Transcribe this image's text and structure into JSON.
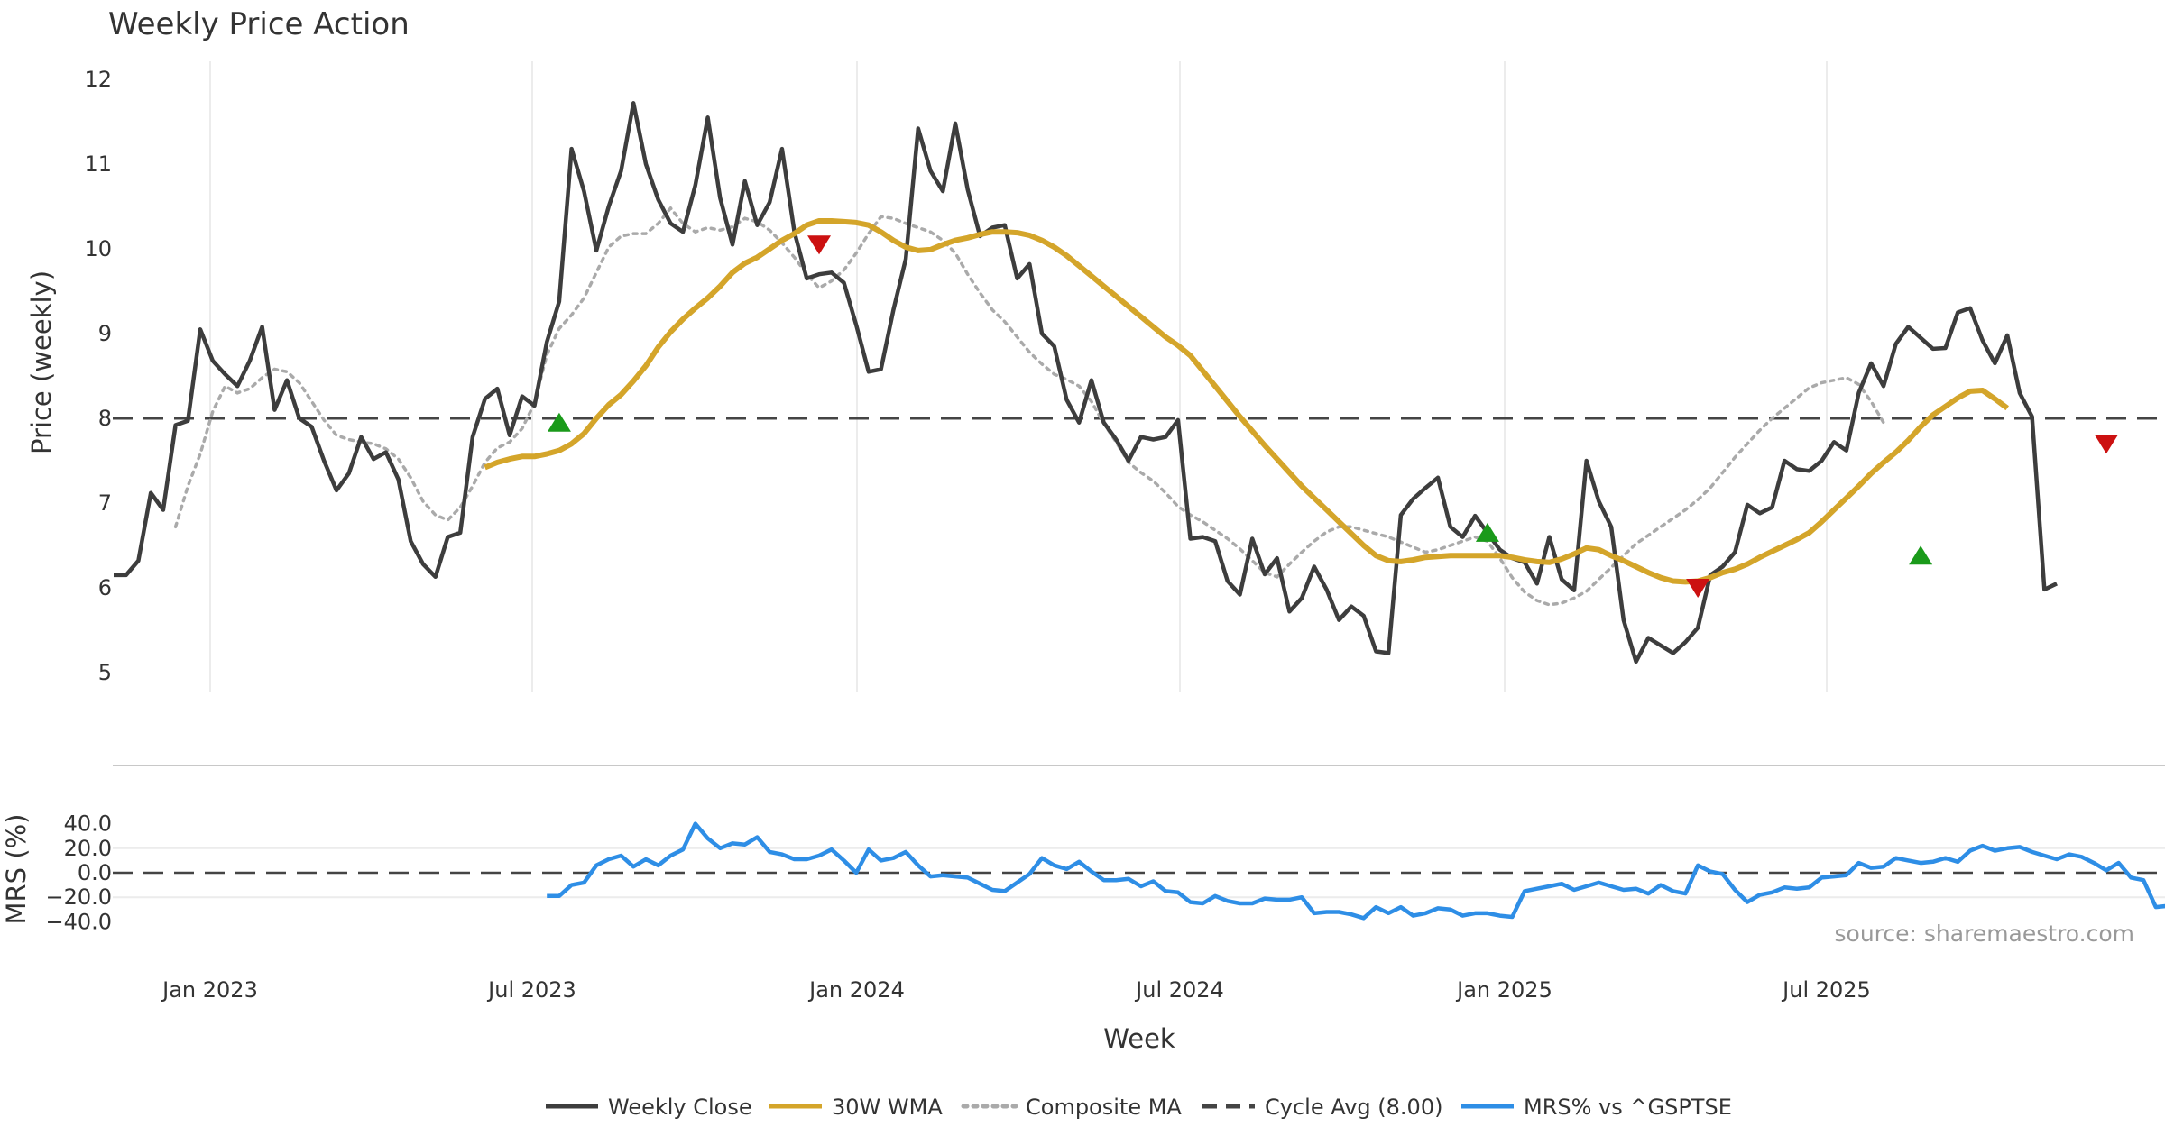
{
  "chart_data": {
    "type": "line",
    "title": "Weekly Price Action",
    "xlabel": "Week",
    "source": "source: sharemaestro.com",
    "x_ticks": [
      "Jan 2023",
      "Jul 2023",
      "Jan 2024",
      "Jul 2024",
      "Jan 2025",
      "Jul 2025"
    ],
    "price_panel": {
      "ylabel": "Price (weekly)",
      "ylim": [
        4.8,
        12.3
      ],
      "y_ticks": [
        "5",
        "6",
        "7",
        "8",
        "9",
        "10",
        "11",
        "12"
      ],
      "cycle_avg": 8.0
    },
    "mrs_panel": {
      "ylabel": "MRS (%)",
      "ylim": [
        -40,
        40
      ],
      "y_ticks": [
        "−40.0",
        "−20.0",
        "0.0",
        "20.0",
        "40.0"
      ],
      "zero_line": 0
    },
    "legend": [
      {
        "label": "Weekly Close",
        "color": "#3d3d3d",
        "style": "solid"
      },
      {
        "label": "30W WMA",
        "color": "#d4a52a",
        "style": "solid"
      },
      {
        "label": "Composite MA",
        "color": "#aaaaaa",
        "style": "dotted"
      },
      {
        "label": "Cycle Avg (8.00)",
        "color": "#444444",
        "style": "dashed"
      },
      {
        "label": "MRS% vs ^GSPTSE",
        "color": "#2e8ee6",
        "style": "solid"
      }
    ],
    "series": [
      {
        "name": "Weekly Close",
        "color": "#3d3d3d",
        "start_week": 0,
        "values": [
          6.15,
          6.15,
          6.32,
          7.12,
          6.92,
          7.92,
          7.97,
          9.05,
          8.68,
          8.52,
          8.38,
          8.68,
          9.08,
          8.1,
          8.45,
          8.0,
          7.9,
          7.5,
          7.15,
          7.35,
          7.78,
          7.52,
          7.6,
          7.28,
          6.55,
          6.28,
          6.13,
          6.6,
          6.65,
          7.78,
          8.23,
          8.35,
          7.8,
          8.26,
          8.15,
          8.9,
          9.38,
          11.18,
          10.68,
          9.98,
          10.5,
          10.92,
          11.72,
          11.0,
          10.58,
          10.3,
          10.2,
          10.75,
          11.55,
          10.6,
          10.05,
          10.8,
          10.28,
          10.55,
          11.18,
          10.2,
          9.65,
          9.7,
          9.72,
          9.6,
          9.1,
          8.55,
          8.58,
          9.28,
          9.88,
          11.42,
          10.92,
          10.68,
          11.48,
          10.7,
          10.15,
          10.25,
          10.28,
          9.65,
          9.82,
          9.0,
          8.85,
          8.22,
          7.95,
          8.45,
          7.95,
          7.75,
          7.5,
          7.78,
          7.75,
          7.78,
          7.98,
          6.58,
          6.6,
          6.55,
          6.08,
          5.92,
          6.58,
          6.16,
          6.35,
          5.72,
          5.88,
          6.25,
          5.98,
          5.62,
          5.78,
          5.67,
          5.25,
          5.23,
          6.86,
          7.05,
          7.18,
          7.3,
          6.72,
          6.6,
          6.85,
          6.65,
          6.45,
          6.35,
          6.3,
          6.05,
          6.6,
          6.1,
          5.97,
          7.5,
          7.02,
          6.72,
          5.62,
          5.13,
          5.41,
          5.32,
          5.23,
          5.36,
          5.53,
          6.15,
          6.25,
          6.42,
          6.98,
          6.88,
          6.95,
          7.5,
          7.4,
          7.38,
          7.5,
          7.72,
          7.62,
          8.3,
          8.65,
          8.38,
          8.88,
          9.08,
          8.95,
          8.82,
          8.83,
          9.25,
          9.3,
          8.92,
          8.65,
          8.98,
          8.3,
          8.02,
          5.98,
          6.05
        ]
      },
      {
        "name": "30W WMA",
        "color": "#d4a52a",
        "start_week": 30,
        "values": [
          7.42,
          7.48,
          7.52,
          7.55,
          7.55,
          7.58,
          7.62,
          7.7,
          7.82,
          8.0,
          8.16,
          8.28,
          8.44,
          8.62,
          8.84,
          9.02,
          9.17,
          9.3,
          9.42,
          9.56,
          9.72,
          9.83,
          9.9,
          10.0,
          10.1,
          10.18,
          10.28,
          10.33,
          10.33,
          10.32,
          10.31,
          10.28,
          10.2,
          10.1,
          10.02,
          9.98,
          9.99,
          10.05,
          10.1,
          10.13,
          10.17,
          10.2,
          10.2,
          10.19,
          10.16,
          10.1,
          10.02,
          9.92,
          9.8,
          9.68,
          9.56,
          9.44,
          9.32,
          9.2,
          9.08,
          8.96,
          8.86,
          8.74,
          8.56,
          8.38,
          8.2,
          8.02,
          7.85,
          7.68,
          7.52,
          7.36,
          7.2,
          7.06,
          6.92,
          6.78,
          6.64,
          6.5,
          6.38,
          6.32,
          6.31,
          6.33,
          6.36,
          6.37,
          6.38,
          6.38,
          6.38,
          6.38,
          6.38,
          6.36,
          6.33,
          6.31,
          6.3,
          6.34,
          6.4,
          6.47,
          6.45,
          6.38,
          6.32,
          6.25,
          6.18,
          6.12,
          6.08,
          6.07,
          6.08,
          6.12,
          6.18,
          6.22,
          6.28,
          6.36,
          6.43,
          6.5,
          6.57,
          6.65,
          6.78,
          6.92,
          7.06,
          7.2,
          7.35,
          7.48,
          7.6,
          7.74,
          7.9,
          8.04,
          8.14,
          8.24,
          8.32,
          8.33,
          8.23,
          8.12
        ]
      },
      {
        "name": "Composite MA",
        "color": "#aaaaaa",
        "start_week": 5,
        "values": [
          6.72,
          7.2,
          7.58,
          8.08,
          8.38,
          8.3,
          8.35,
          8.48,
          8.58,
          8.55,
          8.42,
          8.2,
          7.98,
          7.8,
          7.75,
          7.72,
          7.7,
          7.64,
          7.52,
          7.3,
          7.02,
          6.86,
          6.8,
          6.95,
          7.2,
          7.48,
          7.65,
          7.72,
          7.88,
          8.18,
          8.75,
          9.06,
          9.22,
          9.42,
          9.72,
          10.02,
          10.15,
          10.18,
          10.18,
          10.3,
          10.48,
          10.3,
          10.2,
          10.25,
          10.22,
          10.26,
          10.36,
          10.32,
          10.22,
          10.07,
          9.9,
          9.7,
          9.54,
          9.62,
          9.75,
          9.95,
          10.18,
          10.38,
          10.36,
          10.3,
          10.25,
          10.2,
          10.1,
          9.95,
          9.7,
          9.48,
          9.28,
          9.14,
          8.96,
          8.78,
          8.64,
          8.52,
          8.46,
          8.38,
          8.2,
          7.94,
          7.72,
          7.48,
          7.36,
          7.26,
          7.12,
          6.96,
          6.86,
          6.78,
          6.68,
          6.58,
          6.46,
          6.32,
          6.18,
          6.13,
          6.28,
          6.42,
          6.55,
          6.66,
          6.72,
          6.72,
          6.68,
          6.64,
          6.6,
          6.54,
          6.48,
          6.42,
          6.45,
          6.5,
          6.55,
          6.6,
          6.55,
          6.35,
          6.12,
          5.95,
          5.85,
          5.8,
          5.82,
          5.88,
          5.96,
          6.1,
          6.24,
          6.38,
          6.52,
          6.62,
          6.72,
          6.82,
          6.92,
          7.04,
          7.18,
          7.36,
          7.54,
          7.7,
          7.86,
          8.0,
          8.12,
          8.24,
          8.36,
          8.42,
          8.45,
          8.48,
          8.4,
          8.2,
          7.95
        ]
      },
      {
        "name": "MRS% vs ^GSPTSE",
        "color": "#2e8ee6",
        "panel": "mrs",
        "start_week": 35,
        "values": [
          -19,
          -19,
          -10,
          -8,
          6,
          11,
          14,
          5,
          11,
          6,
          14,
          19,
          40,
          28,
          20,
          24,
          23,
          29,
          17,
          15,
          11,
          11,
          14,
          19,
          10,
          0,
          19,
          10,
          12,
          17,
          6,
          -3,
          -2,
          -3,
          -4,
          -9,
          -14,
          -15,
          -8,
          -1,
          12,
          6,
          3,
          9,
          1,
          -6,
          -6,
          -5,
          -11,
          -7,
          -15,
          -16,
          -24,
          -25,
          -19,
          -23,
          -25,
          -25,
          -21,
          -22,
          -22,
          -20,
          -33,
          -32,
          -32,
          -34,
          -37,
          -28,
          -33,
          -28,
          -35,
          -33,
          -29,
          -30,
          -35,
          -33,
          -33,
          -35,
          -36,
          -15,
          -13,
          -11,
          -9,
          -14,
          -11,
          -8,
          -11,
          -14,
          -13,
          -17,
          -10,
          -15,
          -17,
          6,
          1,
          -1,
          -14,
          -24,
          -18,
          -16,
          -12,
          -13,
          -12,
          -4,
          -3,
          -2,
          8,
          4,
          5,
          12,
          10,
          8,
          9,
          12,
          9,
          18,
          22,
          18,
          20,
          21,
          17,
          14,
          11,
          15,
          13,
          8,
          2,
          8,
          -4,
          -6,
          -28,
          -27
        ]
      }
    ],
    "buy_signals": [
      {
        "week": 36,
        "price": 7.95
      },
      {
        "week": 111,
        "price": 6.65
      },
      {
        "week": 146,
        "price": 6.38
      }
    ],
    "sell_signals": [
      {
        "week": 57,
        "price": 10.05
      },
      {
        "week": 128,
        "price": 6.0
      },
      {
        "week": 161,
        "price": 7.7
      }
    ]
  }
}
